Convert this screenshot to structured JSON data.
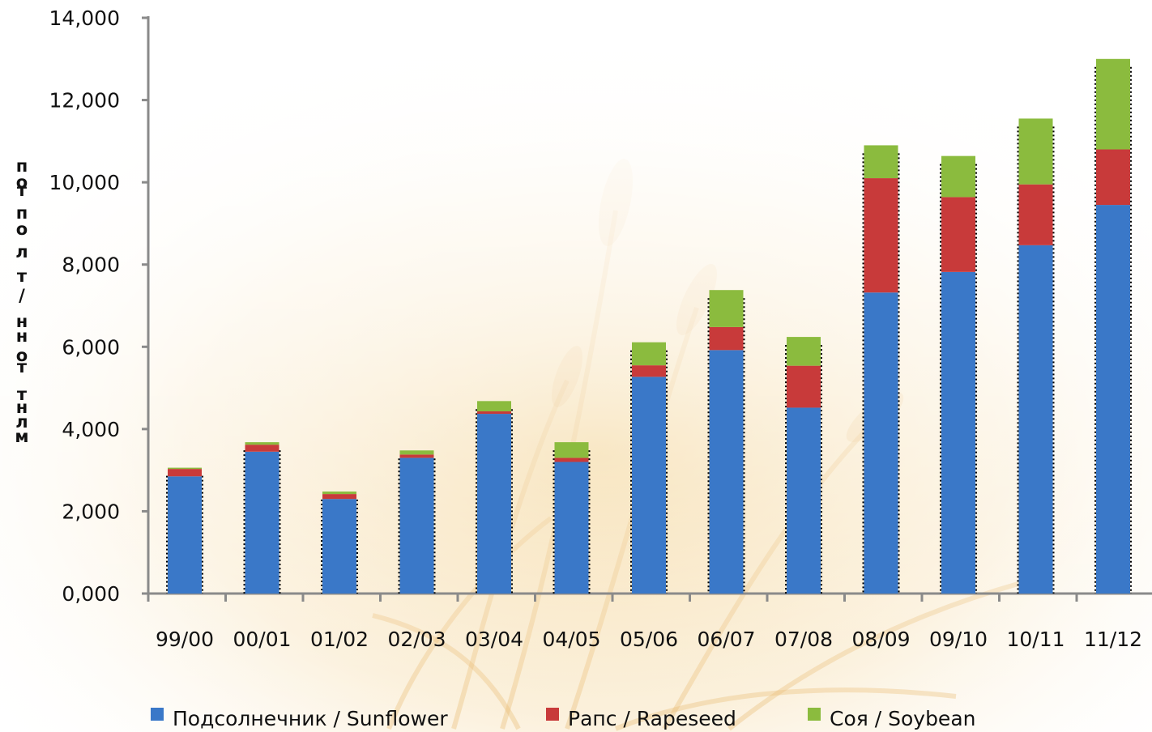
{
  "chart_data": {
    "type": "bar",
    "stacked": true,
    "title": "",
    "xlabel": "",
    "ylabel": "пот по л т / ннот тнл м",
    "ylim": [
      0,
      14000
    ],
    "yticks": [
      "0,000",
      "2,000",
      "4,000",
      "6,000",
      "8,000",
      "10,000",
      "12,000",
      "14,000"
    ],
    "categories": [
      "99/00",
      "00/01",
      "01/02",
      "02/03",
      "03/04",
      "04/05",
      "05/06",
      "06/07",
      "07/08",
      "08/09",
      "09/10",
      "10/11",
      "11/12"
    ],
    "series": [
      {
        "name": "Подсолнечник / Sunflower",
        "color": "#3a78c8",
        "values": [
          2850,
          3450,
          2300,
          3300,
          4370,
          3200,
          5270,
          5920,
          4520,
          7320,
          7820,
          8470,
          9450
        ]
      },
      {
        "name": "Рапс / Rapeseed",
        "color": "#c83a3a",
        "values": [
          180,
          170,
          120,
          80,
          60,
          100,
          280,
          560,
          1020,
          2780,
          1820,
          1480,
          1350
        ]
      },
      {
        "name": "Соя / Soybean",
        "color": "#8bbb3e",
        "values": [
          30,
          60,
          60,
          100,
          250,
          380,
          560,
          900,
          700,
          800,
          1000,
          1600,
          2200
        ]
      }
    ],
    "grid": false,
    "legend_position": "bottom"
  },
  "ylabel_glyphs": [
    "п",
    "о",
    "т",
    "п",
    "о",
    "л",
    "т",
    "/",
    "н",
    "н",
    "о",
    "т",
    "т",
    "н",
    "л",
    "м"
  ]
}
